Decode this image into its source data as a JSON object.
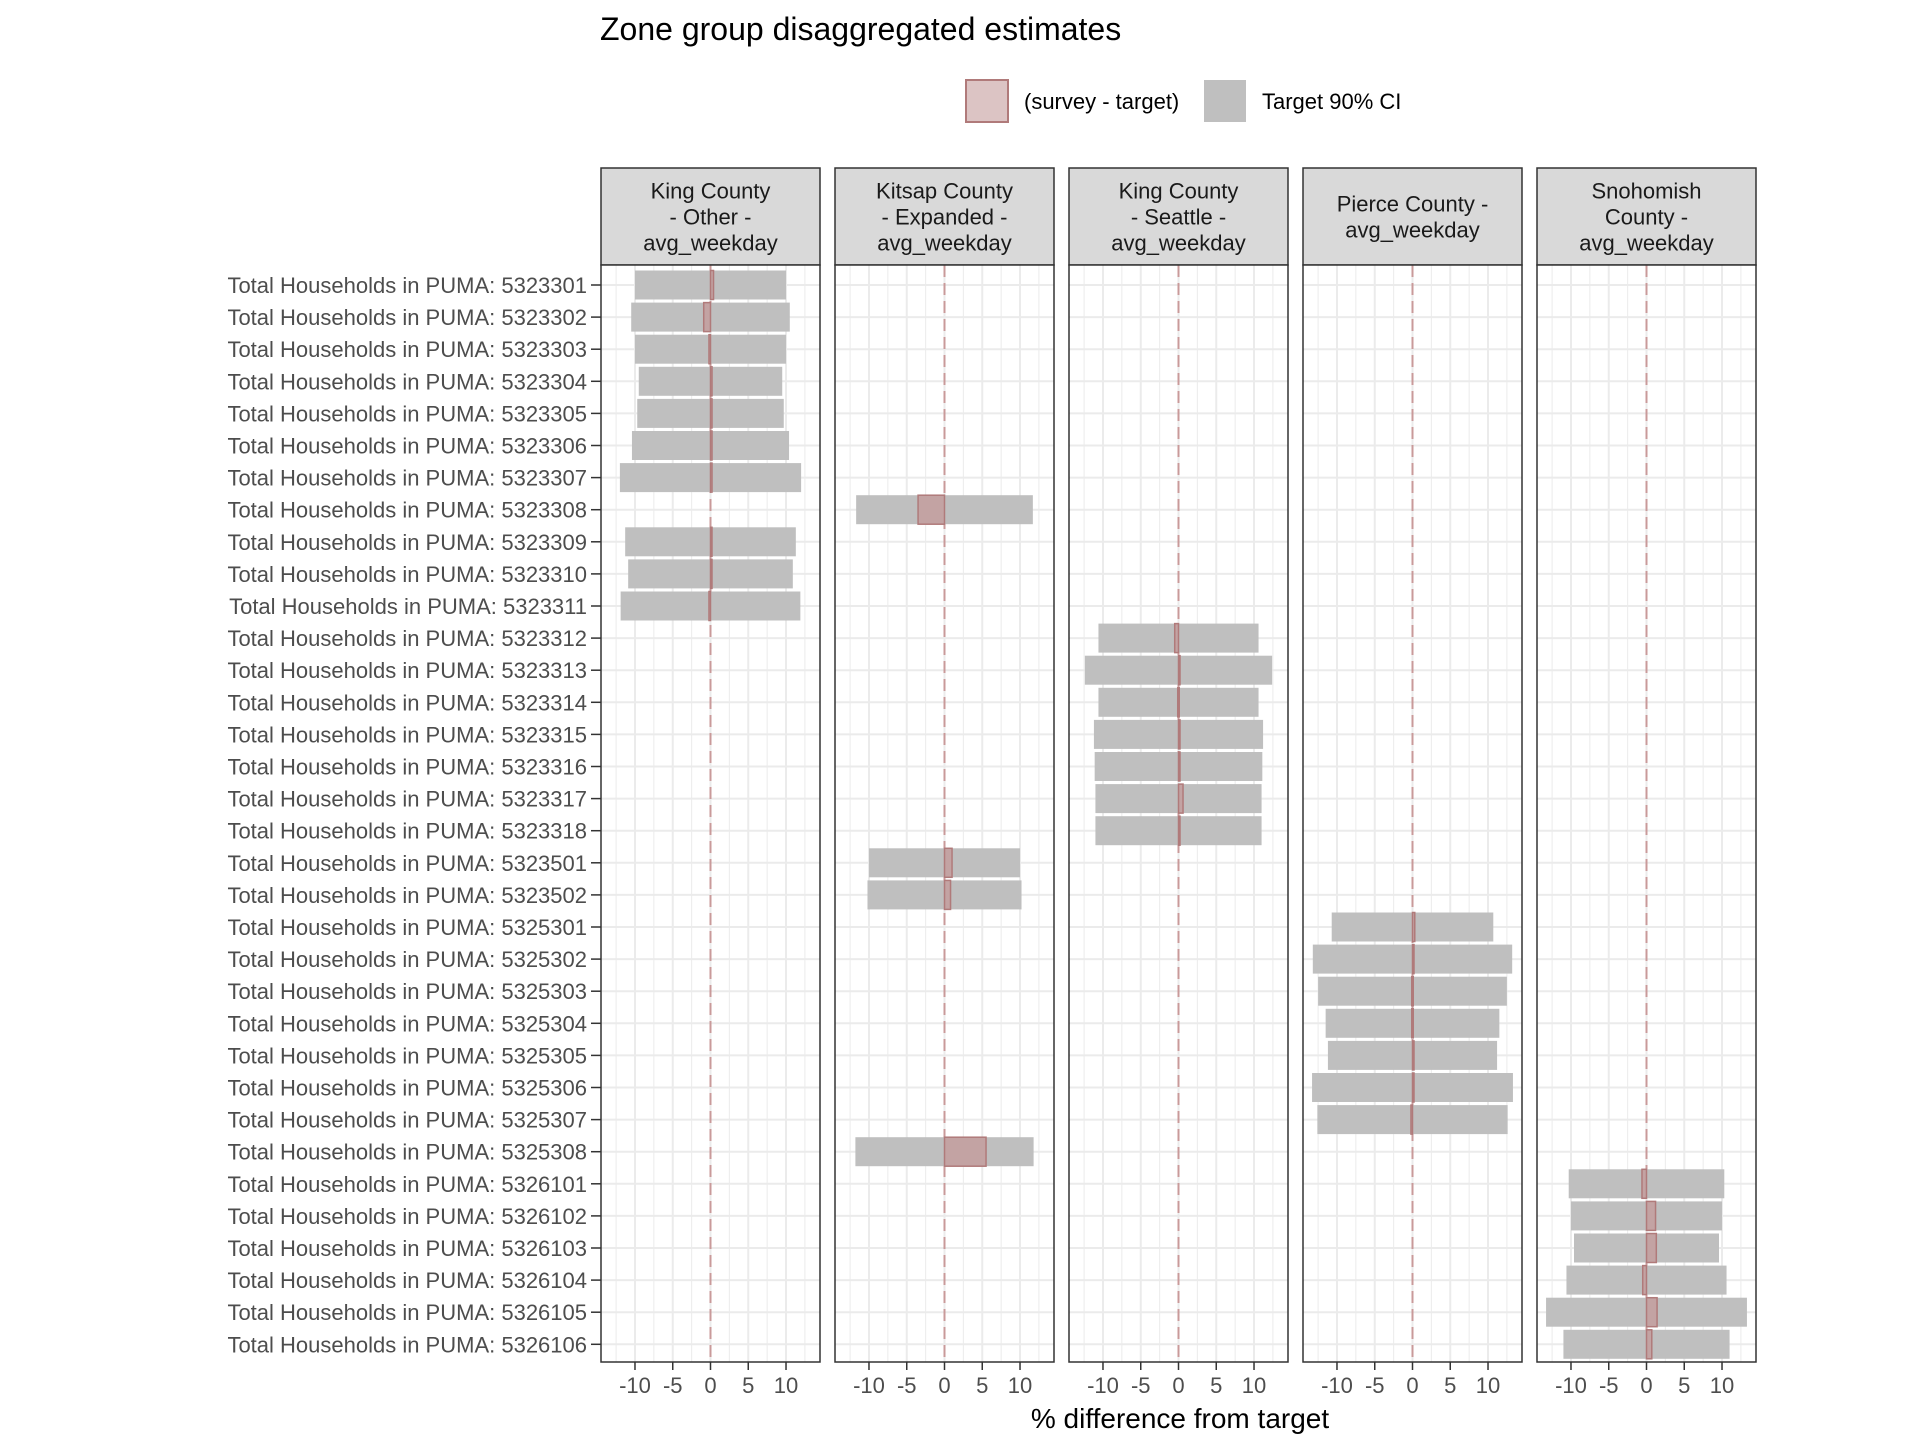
{
  "chart_data": {
    "type": "bar",
    "title": "Zone group disaggregated estimates",
    "xlabel": "% difference from target",
    "ylabel": "",
    "xlim": [
      -14.5,
      14.5
    ],
    "x_ticks": [
      -10,
      -5,
      0,
      5,
      10
    ],
    "x_tick_labels": [
      "-10",
      "-5",
      "0",
      "5",
      "10"
    ],
    "grid": true,
    "legend_position": "top-right",
    "legend": [
      {
        "label": "(survey - target)",
        "fill": "#dcc4c4",
        "stroke": "#b07a7a"
      },
      {
        "label": "Target 90% CI",
        "fill": "#bfbfbf",
        "stroke": "#bfbfbf"
      }
    ],
    "colors": {
      "ci_fill": "#bfbfbf",
      "diff_fill": "#c49a9a",
      "diff_stroke": "#b07a7a",
      "zero_line": "#c99a9a",
      "strip_fill": "#d9d9d9",
      "grid": "#ebebeb",
      "panel_border": "#333333"
    },
    "categories": [
      "Total Households in PUMA: 5323301",
      "Total Households in PUMA: 5323302",
      "Total Households in PUMA: 5323303",
      "Total Households in PUMA: 5323304",
      "Total Households in PUMA: 5323305",
      "Total Households in PUMA: 5323306",
      "Total Households in PUMA: 5323307",
      "Total Households in PUMA: 5323308",
      "Total Households in PUMA: 5323309",
      "Total Households in PUMA: 5323310",
      "Total Households in PUMA: 5323311",
      "Total Households in PUMA: 5323312",
      "Total Households in PUMA: 5323313",
      "Total Households in PUMA: 5323314",
      "Total Households in PUMA: 5323315",
      "Total Households in PUMA: 5323316",
      "Total Households in PUMA: 5323317",
      "Total Households in PUMA: 5323318",
      "Total Households in PUMA: 5323501",
      "Total Households in PUMA: 5323502",
      "Total Households in PUMA: 5325301",
      "Total Households in PUMA: 5325302",
      "Total Households in PUMA: 5325303",
      "Total Households in PUMA: 5325304",
      "Total Households in PUMA: 5325305",
      "Total Households in PUMA: 5325306",
      "Total Households in PUMA: 5325307",
      "Total Households in PUMA: 5325308",
      "Total Households in PUMA: 5326101",
      "Total Households in PUMA: 5326102",
      "Total Households in PUMA: 5326103",
      "Total Households in PUMA: 5326104",
      "Total Households in PUMA: 5326105",
      "Total Households in PUMA: 5326106"
    ],
    "panels": [
      {
        "label_lines": [
          "King County",
          "- Other -",
          "avg_weekday"
        ],
        "rows": [
          {
            "category": "Total Households in PUMA: 5323301",
            "ci": [
              -10.0,
              10.0
            ],
            "diff": 0.4
          },
          {
            "category": "Total Households in PUMA: 5323302",
            "ci": [
              -10.5,
              10.5
            ],
            "diff": -0.9
          },
          {
            "category": "Total Households in PUMA: 5323303",
            "ci": [
              -10.0,
              10.0
            ],
            "diff": -0.2
          },
          {
            "category": "Total Households in PUMA: 5323304",
            "ci": [
              -9.5,
              9.5
            ],
            "diff": 0.2
          },
          {
            "category": "Total Households in PUMA: 5323305",
            "ci": [
              -9.7,
              9.7
            ],
            "diff": 0.2
          },
          {
            "category": "Total Households in PUMA: 5323306",
            "ci": [
              -10.4,
              10.4
            ],
            "diff": 0.2
          },
          {
            "category": "Total Households in PUMA: 5323307",
            "ci": [
              -12.0,
              12.0
            ],
            "diff": 0.2
          },
          {
            "category": "Total Households in PUMA: 5323309",
            "ci": [
              -11.3,
              11.3
            ],
            "diff": 0.1
          },
          {
            "category": "Total Households in PUMA: 5323310",
            "ci": [
              -10.9,
              10.9
            ],
            "diff": 0.1
          },
          {
            "category": "Total Households in PUMA: 5323311",
            "ci": [
              -11.9,
              11.9
            ],
            "diff": -0.2
          }
        ]
      },
      {
        "label_lines": [
          "Kitsap County",
          "- Expanded -",
          "avg_weekday"
        ],
        "rows": [
          {
            "category": "Total Households in PUMA: 5323308",
            "ci": [
              -11.7,
              11.7
            ],
            "diff": -3.5
          },
          {
            "category": "Total Households in PUMA: 5323501",
            "ci": [
              -10.0,
              10.0
            ],
            "diff": 1.0
          },
          {
            "category": "Total Households in PUMA: 5323502",
            "ci": [
              -10.2,
              10.2
            ],
            "diff": 0.8
          },
          {
            "category": "Total Households in PUMA: 5325308",
            "ci": [
              -11.8,
              11.8
            ],
            "diff": 5.5
          }
        ]
      },
      {
        "label_lines": [
          "King County",
          "- Seattle -",
          "avg_weekday"
        ],
        "rows": [
          {
            "category": "Total Households in PUMA: 5323312",
            "ci": [
              -10.6,
              10.6
            ],
            "diff": -0.5
          },
          {
            "category": "Total Households in PUMA: 5323313",
            "ci": [
              -12.4,
              12.4
            ],
            "diff": 0.1
          },
          {
            "category": "Total Households in PUMA: 5323314",
            "ci": [
              -10.6,
              10.6
            ],
            "diff": -0.1
          },
          {
            "category": "Total Households in PUMA: 5323315",
            "ci": [
              -11.2,
              11.2
            ],
            "diff": 0.1
          },
          {
            "category": "Total Households in PUMA: 5323316",
            "ci": [
              -11.1,
              11.1
            ],
            "diff": 0.1
          },
          {
            "category": "Total Households in PUMA: 5323317",
            "ci": [
              -11.0,
              11.0
            ],
            "diff": 0.6
          },
          {
            "category": "Total Households in PUMA: 5323318",
            "ci": [
              -11.0,
              11.0
            ],
            "diff": 0.1
          }
        ]
      },
      {
        "label_lines": [
          "Pierce County -",
          "avg_weekday"
        ],
        "rows": [
          {
            "category": "Total Households in PUMA: 5325301",
            "ci": [
              -10.7,
              10.7
            ],
            "diff": 0.3
          },
          {
            "category": "Total Households in PUMA: 5325302",
            "ci": [
              -13.2,
              13.2
            ],
            "diff": 0.1
          },
          {
            "category": "Total Households in PUMA: 5325303",
            "ci": [
              -12.5,
              12.5
            ],
            "diff": -0.1
          },
          {
            "category": "Total Households in PUMA: 5325304",
            "ci": [
              -11.5,
              11.5
            ],
            "diff": -0.1
          },
          {
            "category": "Total Households in PUMA: 5325305",
            "ci": [
              -11.2,
              11.2
            ],
            "diff": 0.1
          },
          {
            "category": "Total Households in PUMA: 5325306",
            "ci": [
              -13.3,
              13.3
            ],
            "diff": 0.1
          },
          {
            "category": "Total Households in PUMA: 5325307",
            "ci": [
              -12.6,
              12.6
            ],
            "diff": -0.2
          }
        ]
      },
      {
        "label_lines": [
          "Snohomish",
          "County -",
          "avg_weekday"
        ],
        "rows": [
          {
            "category": "Total Households in PUMA: 5326101",
            "ci": [
              -10.3,
              10.3
            ],
            "diff": -0.6
          },
          {
            "category": "Total Households in PUMA: 5326102",
            "ci": [
              -10.0,
              10.0
            ],
            "diff": 1.2
          },
          {
            "category": "Total Households in PUMA: 5326103",
            "ci": [
              -9.6,
              9.6
            ],
            "diff": 1.3
          },
          {
            "category": "Total Households in PUMA: 5326104",
            "ci": [
              -10.6,
              10.6
            ],
            "diff": -0.5
          },
          {
            "category": "Total Households in PUMA: 5326105",
            "ci": [
              -13.3,
              13.3
            ],
            "diff": 1.4
          },
          {
            "category": "Total Households in PUMA: 5326106",
            "ci": [
              -11.0,
              11.0
            ],
            "diff": 0.7
          }
        ]
      }
    ]
  }
}
